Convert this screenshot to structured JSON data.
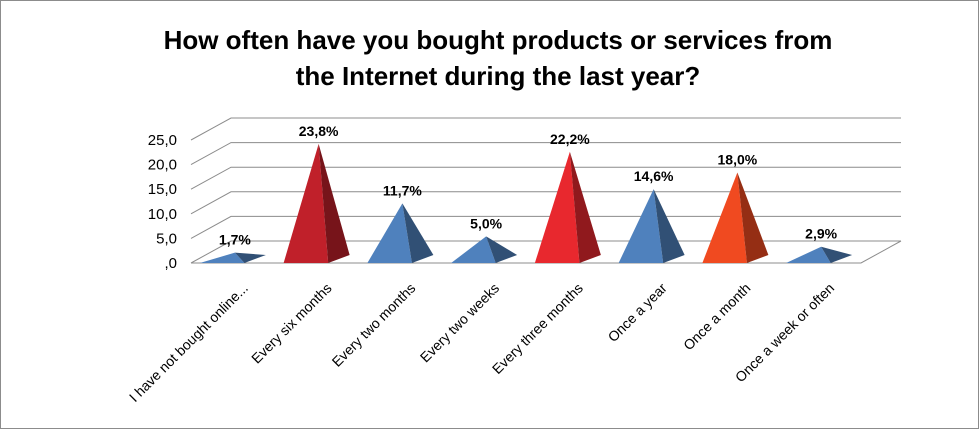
{
  "chart_data": {
    "type": "bar",
    "subtype": "3d-pyramid",
    "title_lines": [
      "How often have you bought products or services from",
      "the Internet during the last year?"
    ],
    "xlabel": "",
    "ylabel": "",
    "ylim": [
      0,
      25
    ],
    "y_ticks": [
      ",0",
      "5,0",
      "10,0",
      "15,0",
      "20,0",
      "25,0"
    ],
    "grid": true,
    "legend": "none",
    "categories": [
      "I have not bought online...",
      "Every six months",
      "Every two months",
      "Every two weeks",
      "Every three months",
      "Once a year",
      "Once a month",
      "Once a week or often"
    ],
    "values": [
      1.7,
      23.8,
      11.7,
      5.0,
      22.2,
      14.6,
      18.0,
      2.9
    ],
    "data_labels": [
      "1,7%",
      "23,8%",
      "11,7%",
      "5,0%",
      "22,2%",
      "14,6%",
      "18,0%",
      "2,9%"
    ],
    "colors": [
      "#4f81bd",
      "#c0202a",
      "#4f81bd",
      "#4f81bd",
      "#e8282e",
      "#4f81bd",
      "#f04a20",
      "#4f81bd"
    ]
  }
}
